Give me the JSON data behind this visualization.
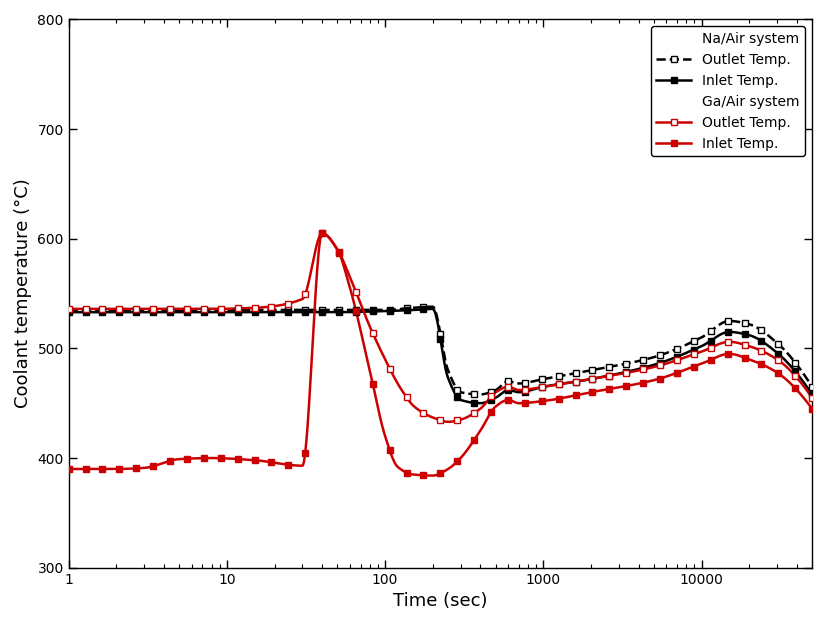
{
  "xlabel": "Time (sec)",
  "ylabel": "Coolant temperature (°C)",
  "xlim": [
    1,
    50000
  ],
  "ylim": [
    300,
    800
  ],
  "yticks": [
    300,
    400,
    500,
    600,
    700,
    800
  ],
  "background_color": "#ffffff",
  "legend_labels": {
    "na_outlet": "Outlet Temp.",
    "na_inlet": "Inlet Temp.",
    "ga_outlet": "Outlet Temp.",
    "ga_inlet": "Inlet Temp.",
    "na_title": "Na/Air system",
    "ga_title": "Ga/Air system"
  },
  "colors": {
    "black": "#000000",
    "red": "#cc0000"
  }
}
